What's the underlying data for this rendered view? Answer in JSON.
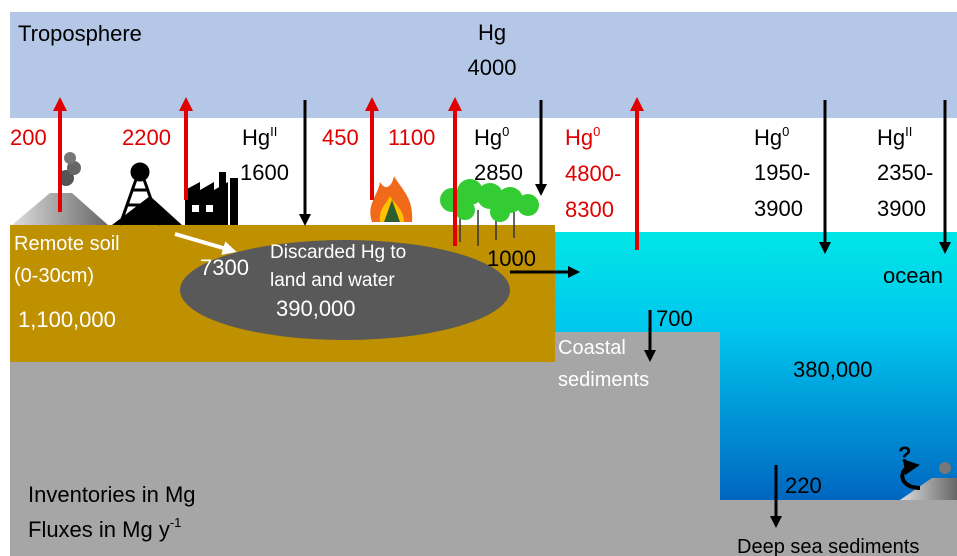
{
  "atmosphere": {
    "label": "Troposphere",
    "species": "Hg",
    "inventory": "4000"
  },
  "fluxes": {
    "volcanic": {
      "value": "200"
    },
    "mining_industry": {
      "value": "2200"
    },
    "hg2_deposition_land": {
      "species": "Hg",
      "sup": "II",
      "value": "1600"
    },
    "biomass_burning": {
      "value": "450"
    },
    "soil_emission": {
      "value": "1100"
    },
    "hg0_uptake_land": {
      "species": "Hg",
      "sup": "0",
      "value": "2850"
    },
    "hg0_ocean_evasion": {
      "species": "Hg",
      "sup": "0",
      "lines": [
        "4800-",
        "8300"
      ]
    },
    "hg0_ocean_uptake": {
      "species": "Hg",
      "sup": "0",
      "lines": [
        "1950-",
        "3900"
      ]
    },
    "hg2_ocean_deposition": {
      "species": "Hg",
      "sup": "II",
      "lines": [
        "2350-",
        "3900"
      ]
    },
    "discard": {
      "value": "7300"
    },
    "river": {
      "value": "1000"
    },
    "coastal_burial": {
      "value": "700"
    },
    "deep_burial": {
      "value": "220"
    },
    "vents": {
      "value": "?"
    }
  },
  "soil": {
    "lines": [
      "Remote soil",
      "(0-30cm)"
    ],
    "inventory": "1,100,000"
  },
  "discarded": {
    "lines": [
      "Discarded Hg to",
      "land and water"
    ],
    "inventory": "390,000"
  },
  "ocean": {
    "label": "ocean",
    "inventory": "380,000"
  },
  "coastal_sediments": {
    "lines": [
      "Coastal",
      "sediments"
    ]
  },
  "deep_sea": {
    "label": "Deep sea sediments"
  },
  "legend": {
    "inventories": "Inventories in Mg",
    "fluxes": "Fluxes in Mg y",
    "fluxes_sup": "-1"
  }
}
